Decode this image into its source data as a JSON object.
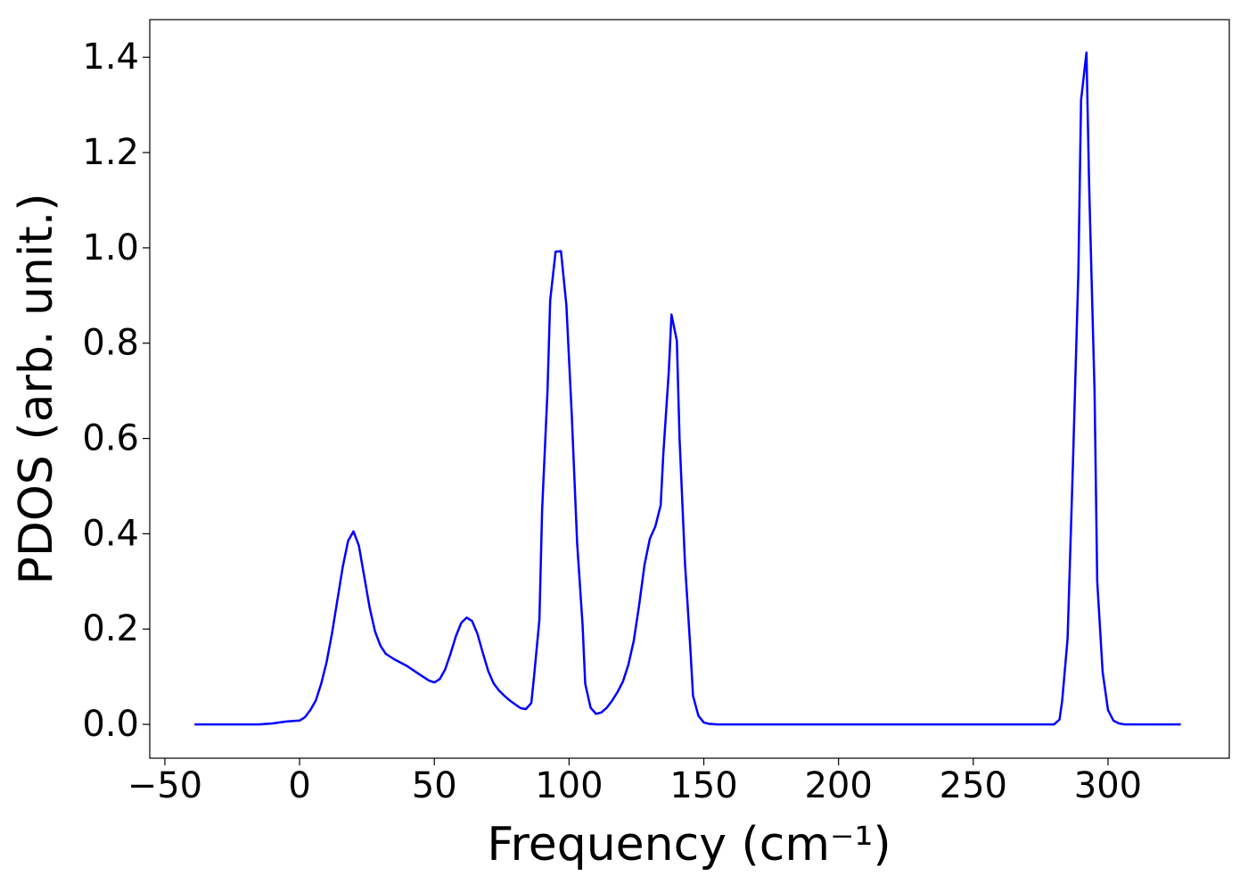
{
  "chart_data": {
    "type": "line",
    "xlabel": "Frequency (cm⁻¹)",
    "ylabel": "PDOS (arb. unit.)",
    "x": [
      -39,
      -15,
      -10,
      -5,
      0,
      2,
      4,
      6,
      8,
      10,
      12,
      14,
      16,
      18,
      20,
      22,
      24,
      26,
      28,
      30,
      32,
      35,
      40,
      45,
      48,
      50,
      52,
      54,
      56,
      58,
      60,
      62,
      64,
      66,
      68,
      70,
      72,
      74,
      76,
      78,
      80,
      82,
      84,
      86,
      87,
      89,
      90,
      92,
      93,
      95,
      97,
      99,
      101,
      103,
      105,
      106,
      108,
      110,
      112,
      114,
      116,
      118,
      120,
      122,
      124,
      126,
      128,
      130,
      132,
      134,
      135,
      137,
      138,
      140,
      141,
      143,
      145,
      146,
      148,
      150,
      152,
      155,
      280,
      282,
      283,
      285,
      287,
      289,
      290,
      292,
      293,
      295,
      296,
      298,
      300,
      302,
      304,
      306,
      327
    ],
    "series": [
      {
        "name": "PDOS",
        "color": "#0000ff",
        "values": [
          0,
          0,
          0.002,
          0.006,
          0.008,
          0.015,
          0.03,
          0.05,
          0.085,
          0.13,
          0.19,
          0.26,
          0.33,
          0.385,
          0.405,
          0.375,
          0.31,
          0.245,
          0.195,
          0.165,
          0.148,
          0.137,
          0.122,
          0.103,
          0.092,
          0.088,
          0.095,
          0.115,
          0.148,
          0.185,
          0.213,
          0.224,
          0.217,
          0.19,
          0.15,
          0.112,
          0.086,
          0.071,
          0.06,
          0.05,
          0.042,
          0.034,
          0.032,
          0.045,
          0.1,
          0.22,
          0.45,
          0.7,
          0.89,
          0.992,
          0.993,
          0.88,
          0.65,
          0.38,
          0.21,
          0.085,
          0.035,
          0.022,
          0.025,
          0.035,
          0.05,
          0.068,
          0.09,
          0.125,
          0.175,
          0.25,
          0.335,
          0.39,
          0.415,
          0.46,
          0.57,
          0.74,
          0.86,
          0.805,
          0.6,
          0.34,
          0.16,
          0.06,
          0.018,
          0.004,
          0.001,
          0,
          0,
          0.01,
          0.05,
          0.18,
          0.55,
          0.95,
          1.31,
          1.41,
          1.13,
          0.7,
          0.3,
          0.11,
          0.03,
          0.008,
          0.002,
          0,
          0
        ]
      }
    ],
    "xlim": [
      -55.6,
      345.0
    ],
    "ylim": [
      -0.071,
      1.479
    ],
    "xticks": [
      {
        "value": -50,
        "label": "−50"
      },
      0,
      50,
      100,
      150,
      200,
      250,
      300
    ],
    "yticks": [
      {
        "value": 0,
        "label": "0.0"
      },
      {
        "value": 0.2,
        "label": "0.2"
      },
      {
        "value": 0.4,
        "label": "0.4"
      },
      {
        "value": 0.6,
        "label": "0.6"
      },
      {
        "value": 0.8,
        "label": "0.8"
      },
      {
        "value": 1.0,
        "label": "1.0"
      },
      {
        "value": 1.2,
        "label": "1.2"
      },
      {
        "value": 1.4,
        "label": "1.4"
      }
    ],
    "grid": false
  }
}
